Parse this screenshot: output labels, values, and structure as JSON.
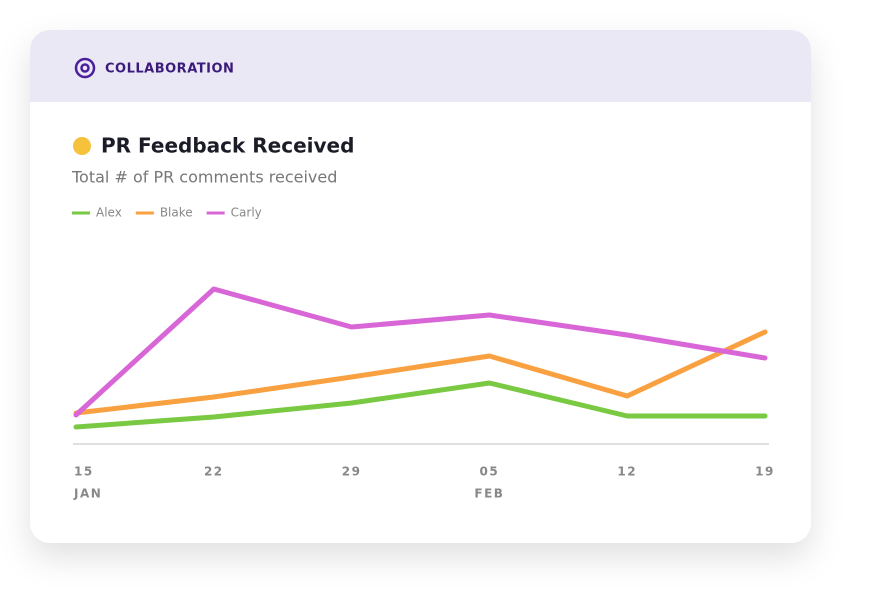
{
  "header": {
    "title": "COLLABORATION"
  },
  "chart_data": {
    "type": "line",
    "title": "PR Feedback Received",
    "subtitle": "Total # of PR comments received",
    "categories": [
      "15",
      "22",
      "29",
      "05",
      "12",
      "19"
    ],
    "month_labels": [
      "JAN",
      null,
      null,
      "FEB",
      null,
      null
    ],
    "ylim": [
      0,
      20
    ],
    "series": [
      {
        "name": "Alex",
        "color": "#7ac943",
        "values": [
          1.7,
          2.7,
          4.1,
          6.1,
          2.8,
          2.8
        ]
      },
      {
        "name": "Blake",
        "color": "#f9a040",
        "values": [
          3.1,
          4.7,
          6.7,
          8.8,
          4.8,
          11.2
        ]
      },
      {
        "name": "Carly",
        "color": "#d966d6",
        "values": [
          2.9,
          15.5,
          11.7,
          12.9,
          10.9,
          8.6
        ]
      }
    ]
  }
}
